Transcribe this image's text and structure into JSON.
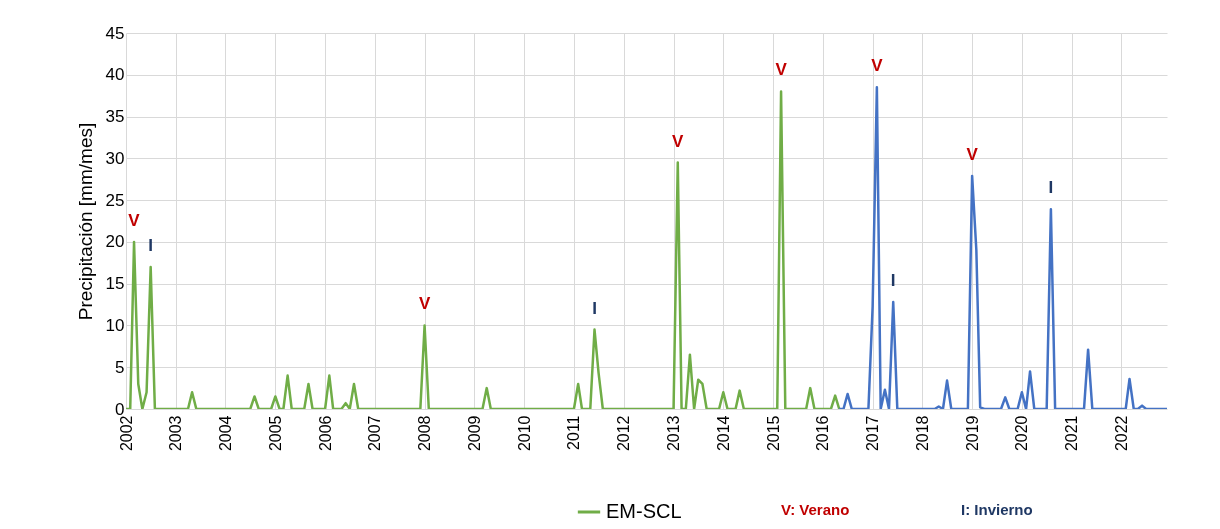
{
  "chart_data": {
    "type": "line",
    "ylabel": "Precipitación [mm/mes]",
    "xlim": [
      "2002",
      "2022-12"
    ],
    "xticks": [
      "2002",
      "2003",
      "2004",
      "2005",
      "2006",
      "2007",
      "2008",
      "2009",
      "2010",
      "2011",
      "2012",
      "2013",
      "2014",
      "2015",
      "2016",
      "2017",
      "2018",
      "2019",
      "2020",
      "2021",
      "2022"
    ],
    "ylim": [
      0,
      45
    ],
    "yticks": [
      0,
      5,
      10,
      15,
      20,
      25,
      30,
      35,
      40,
      45
    ],
    "grid": true,
    "legend": "bottom",
    "line_style": "solid",
    "marker": "none",
    "series": [
      {
        "name": "EM-SCL",
        "color": "#70ad47",
        "x": [
          "2002",
          "2002-02",
          "2002-03",
          "2002-04",
          "2002-05",
          "2002-06",
          "2002-07",
          "2002-08",
          "2003-04",
          "2003-05",
          "2003-06",
          "2004-07",
          "2004-08",
          "2004-09",
          "2004-12",
          "2005-01",
          "2005-02",
          "2005-03",
          "2005-04",
          "2005-05",
          "2005-08",
          "2005-09",
          "2005-10",
          "2006-01",
          "2006-02",
          "2006-03",
          "2006-05",
          "2006-06",
          "2006-07",
          "2006-08",
          "2006-09",
          "2007-12",
          "2008-01",
          "2008-02",
          "2009-03",
          "2009-04",
          "2009-05",
          "2011-01",
          "2011-02",
          "2011-03",
          "2011-05",
          "2011-06",
          "2011-07",
          "2011-08",
          "2013-01",
          "2013-02",
          "2013-03",
          "2013-04",
          "2013-05",
          "2013-06",
          "2013-07",
          "2013-08",
          "2013-09",
          "2013-12",
          "2014-01",
          "2014-02",
          "2014-04",
          "2014-05",
          "2014-06",
          "2015-02",
          "2015-03",
          "2015-04",
          "2015-09",
          "2015-10",
          "2015-11",
          "2016-03",
          "2016-04",
          "2016-05"
        ],
        "values": [
          0,
          0,
          20,
          3,
          0,
          2,
          17,
          0,
          0,
          2,
          0,
          0,
          1.5,
          0,
          0,
          1.5,
          0,
          0,
          4,
          0,
          0,
          3,
          0,
          0,
          4,
          0,
          0,
          0.7,
          0,
          3,
          0,
          0,
          10,
          0,
          0,
          2.5,
          0,
          0,
          3,
          0,
          0,
          9.5,
          4.3,
          0,
          0,
          29.5,
          0,
          0,
          6.5,
          0,
          3.5,
          3,
          0,
          0,
          2,
          0,
          0,
          2.2,
          0,
          0,
          38,
          0,
          0,
          2.5,
          0,
          0,
          1.6,
          0
        ]
      },
      {
        "color": "#4472c4",
        "x": [
          "2016-05",
          "2016-06",
          "2016-07",
          "2016-08",
          "2016-12",
          "2017-01",
          "2017-02",
          "2017-03",
          "2017-04",
          "2017-05",
          "2017-06",
          "2017-07",
          "2018-04",
          "2018-05",
          "2018-06",
          "2018-07",
          "2018-08",
          "2018-12",
          "2019-01",
          "2019-02",
          "2019-03",
          "2019-04",
          "2019-08",
          "2019-09",
          "2019-10",
          "2019-12",
          "2020-01",
          "2020-02",
          "2020-03",
          "2020-04",
          "2020-07",
          "2020-08",
          "2020-09",
          "2021-04",
          "2021-05",
          "2021-06",
          "2022-02",
          "2022-03",
          "2022-04",
          "2022-05",
          "2022-06",
          "2022-07",
          "2022-12"
        ],
        "values": [
          0,
          0,
          1.8,
          0,
          0,
          12.3,
          38.5,
          0,
          2.3,
          0,
          12.8,
          0,
          0,
          0.3,
          0,
          3.4,
          0,
          0,
          27.9,
          19,
          0.2,
          0,
          0,
          1.4,
          0,
          0,
          2,
          0,
          4.5,
          0,
          0,
          23.9,
          0,
          0,
          7.1,
          0,
          0,
          3.6,
          0,
          0,
          0.4,
          0,
          0
        ]
      }
    ],
    "annotations": [
      {
        "text": "V",
        "x": "2002-03",
        "y": 20
      },
      {
        "text": "I",
        "x": "2002-07",
        "y": 17
      },
      {
        "text": "V",
        "x": "2008-01",
        "y": 10
      },
      {
        "text": "I",
        "x": "2011-06",
        "y": 9.5
      },
      {
        "text": "V",
        "x": "2013-02",
        "y": 29.5
      },
      {
        "text": "V",
        "x": "2015-03",
        "y": 38
      },
      {
        "text": "V",
        "x": "2017-02",
        "y": 38.5
      },
      {
        "text": "I",
        "x": "2017-06",
        "y": 12.8
      },
      {
        "text": "V",
        "x": "2019-01",
        "y": 27.9
      },
      {
        "text": "I",
        "x": "2020-08",
        "y": 23.9
      },
      "V: Verano",
      "I: Invierno"
    ]
  }
}
